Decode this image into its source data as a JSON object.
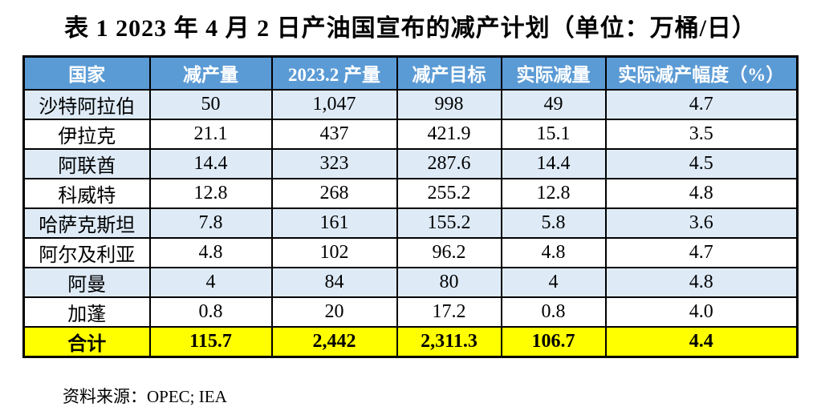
{
  "title": "表 1 2023 年 4 月 2 日产油国宣布的减产计划（单位：万桶/日）",
  "source_note": "资料来源：OPEC; IEA",
  "colors": {
    "header_bg": "#5B9BD5",
    "header_text": "#FFFFFF",
    "row_bg": "#FFFFFF",
    "alt_row_bg": "#DEEBF7",
    "total_row_bg": "#FFFF00",
    "border": "#000000",
    "text": "#000000"
  },
  "table": {
    "columns": [
      "国家",
      "减产量",
      "2023.2 产量",
      "减产目标",
      "实际减量",
      "实际减产幅度（%）"
    ],
    "rows": [
      [
        "沙特阿拉伯",
        "50",
        "1,047",
        "998",
        "49",
        "4.7"
      ],
      [
        "伊拉克",
        "21.1",
        "437",
        "421.9",
        "15.1",
        "3.5"
      ],
      [
        "阿联酋",
        "14.4",
        "323",
        "287.6",
        "14.4",
        "4.5"
      ],
      [
        "科威特",
        "12.8",
        "268",
        "255.2",
        "12.8",
        "4.8"
      ],
      [
        "哈萨克斯坦",
        "7.8",
        "161",
        "155.2",
        "5.8",
        "3.6"
      ],
      [
        "阿尔及利亚",
        "4.8",
        "102",
        "96.2",
        "4.8",
        "4.7"
      ],
      [
        "阿曼",
        "4",
        "84",
        "80",
        "4",
        "4.8"
      ],
      [
        "加蓬",
        "0.8",
        "20",
        "17.2",
        "0.8",
        "4.0"
      ]
    ],
    "total_row": [
      "合计",
      "115.7",
      "2,442",
      "2,311.3",
      "106.7",
      "4.4"
    ]
  },
  "chart_data": {
    "type": "table",
    "title": "表 1 2023 年 4 月 2 日产油国宣布的减产计划（单位：万桶/日）",
    "columns": [
      "国家",
      "减产量",
      "2023.2 产量",
      "减产目标",
      "实际减量",
      "实际减产幅度（%）"
    ],
    "rows": [
      [
        "沙特阿拉伯",
        50,
        1047,
        998,
        49,
        4.7
      ],
      [
        "伊拉克",
        21.1,
        437,
        421.9,
        15.1,
        3.5
      ],
      [
        "阿联酋",
        14.4,
        323,
        287.6,
        14.4,
        4.5
      ],
      [
        "科威特",
        12.8,
        268,
        255.2,
        12.8,
        4.8
      ],
      [
        "哈萨克斯坦",
        7.8,
        161,
        155.2,
        5.8,
        3.6
      ],
      [
        "阿尔及利亚",
        4.8,
        102,
        96.2,
        4.8,
        4.7
      ],
      [
        "阿曼",
        4,
        84,
        80,
        4,
        4.8
      ],
      [
        "加蓬",
        0.8,
        20,
        17.2,
        0.8,
        4.0
      ],
      [
        "合计",
        115.7,
        2442,
        2311.3,
        106.7,
        4.4
      ]
    ]
  }
}
